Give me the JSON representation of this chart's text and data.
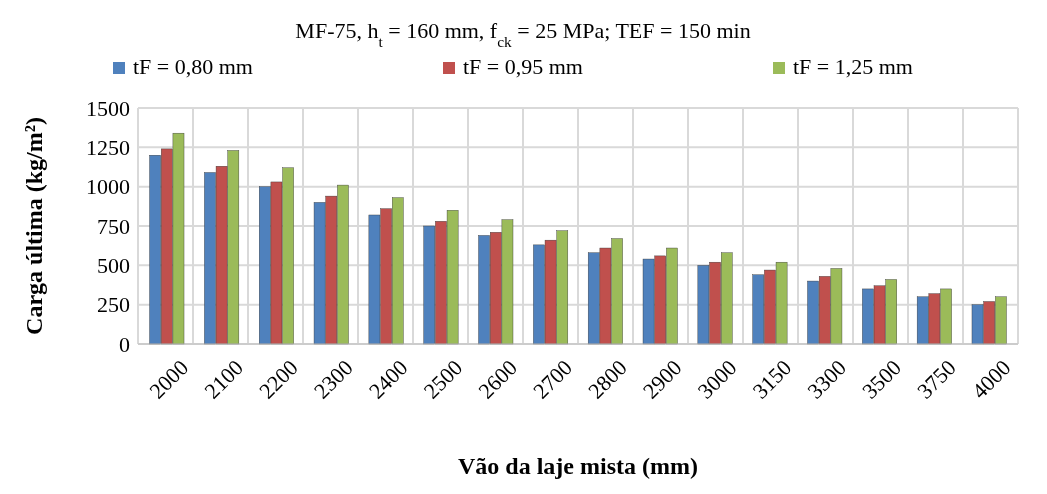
{
  "chart_data": {
    "type": "bar",
    "title": "MF-75, h$_{t}$ = 160 mm, f$_{ck}$ = 25 MPa; TEF = 150 min",
    "xlabel": "Vão da laje mista (mm)",
    "ylabel": "Carga última (kg/m²)",
    "categories": [
      "2000",
      "2100",
      "2200",
      "2300",
      "2400",
      "2500",
      "2600",
      "2700",
      "2800",
      "2900",
      "3000",
      "3150",
      "3300",
      "3500",
      "3750",
      "4000"
    ],
    "series": [
      {
        "name": "tF = 0,80 mm",
        "color": "#4f81bd",
        "values": [
          1200,
          1090,
          1000,
          900,
          820,
          750,
          690,
          630,
          580,
          540,
          500,
          440,
          400,
          350,
          300,
          250
        ]
      },
      {
        "name": "tF = 0,95 mm",
        "color": "#c0504d",
        "values": [
          1240,
          1130,
          1030,
          940,
          860,
          780,
          710,
          660,
          610,
          560,
          520,
          470,
          430,
          370,
          320,
          270
        ]
      },
      {
        "name": "tF = 1,25 mm",
        "color": "#9bbb59",
        "values": [
          1340,
          1230,
          1120,
          1010,
          930,
          850,
          790,
          720,
          670,
          610,
          580,
          520,
          480,
          410,
          350,
          300
        ]
      }
    ],
    "ylim": [
      0,
      1500
    ],
    "yticks": [
      0,
      250,
      500,
      750,
      1000,
      1250,
      1500
    ],
    "grid": true,
    "legend": "top"
  }
}
